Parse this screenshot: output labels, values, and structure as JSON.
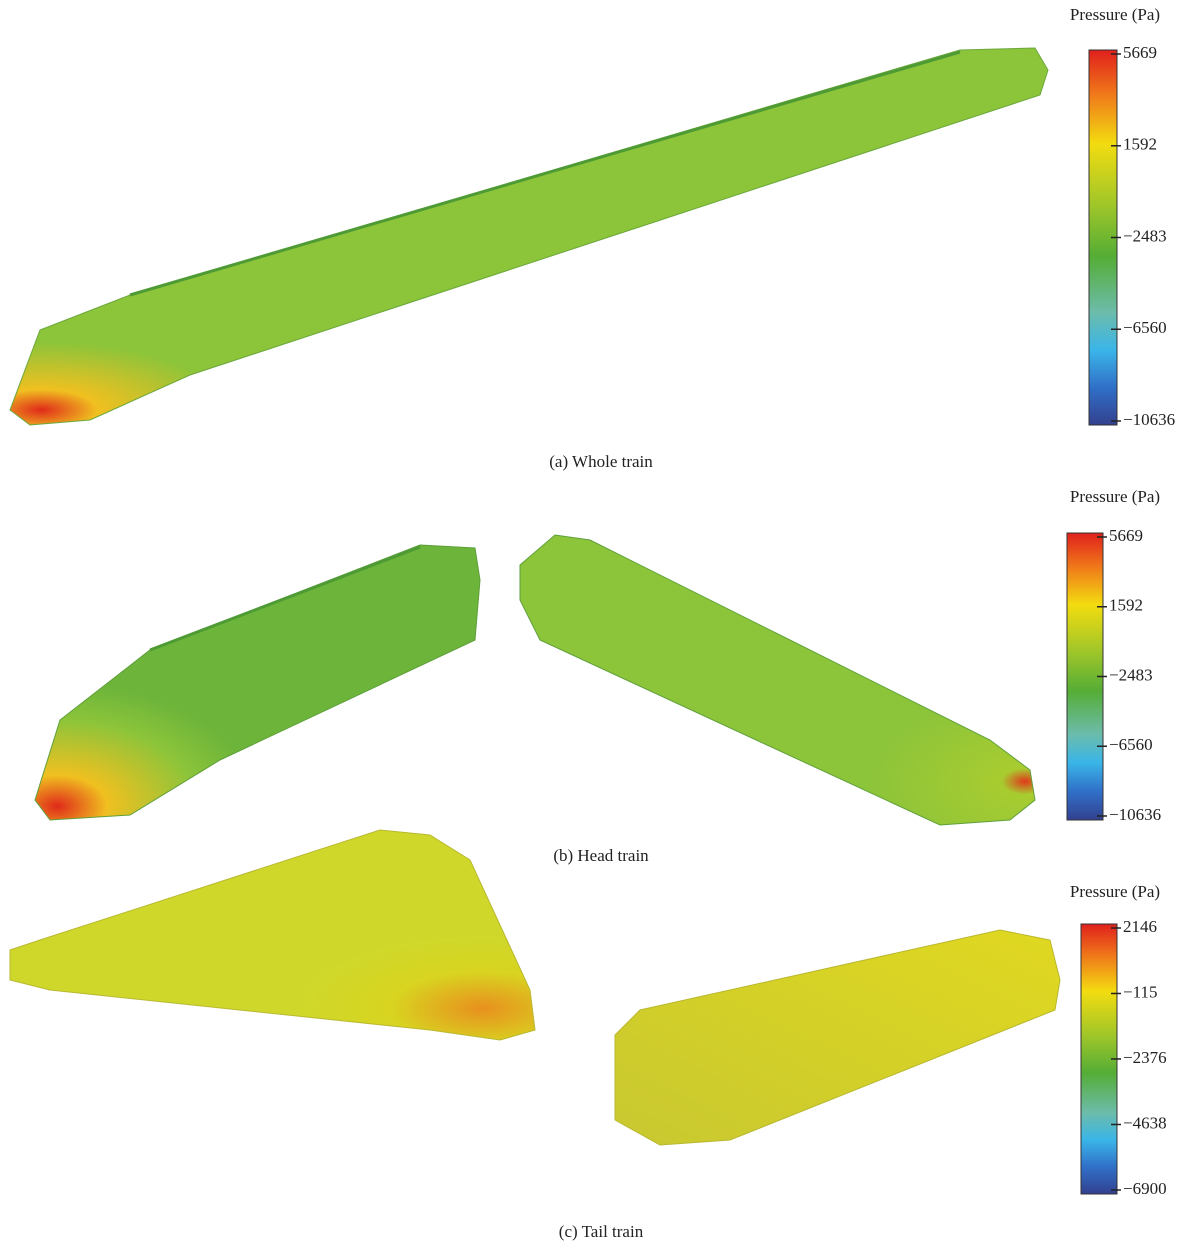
{
  "panels": [
    {
      "caption": "(a) Whole train",
      "colorbar": {
        "title": "Pressure (Pa)",
        "ticks": [
          {
            "value": 5669,
            "label": "5669"
          },
          {
            "value": 1592,
            "label": "1592"
          },
          {
            "value": -2483,
            "label": "−2483"
          },
          {
            "value": -6560,
            "label": "−6560"
          },
          {
            "value": -10636,
            "label": "−10636"
          }
        ]
      }
    },
    {
      "caption": "(b) Head train",
      "colorbar": {
        "title": "Pressure (Pa)",
        "ticks": [
          {
            "value": 5669,
            "label": "5669"
          },
          {
            "value": 1592,
            "label": "1592"
          },
          {
            "value": -2483,
            "label": "−2483"
          },
          {
            "value": -6560,
            "label": "−6560"
          },
          {
            "value": -10636,
            "label": "−10636"
          }
        ]
      }
    },
    {
      "caption": "(c) Tail train",
      "colorbar": {
        "title": "Pressure (Pa)",
        "ticks": [
          {
            "value": 2146,
            "label": "2146"
          },
          {
            "value": -115,
            "label": "−115"
          },
          {
            "value": -2376,
            "label": "−2376"
          },
          {
            "value": -4638,
            "label": "−4638"
          },
          {
            "value": -6900,
            "label": "−6900"
          }
        ]
      }
    }
  ]
}
